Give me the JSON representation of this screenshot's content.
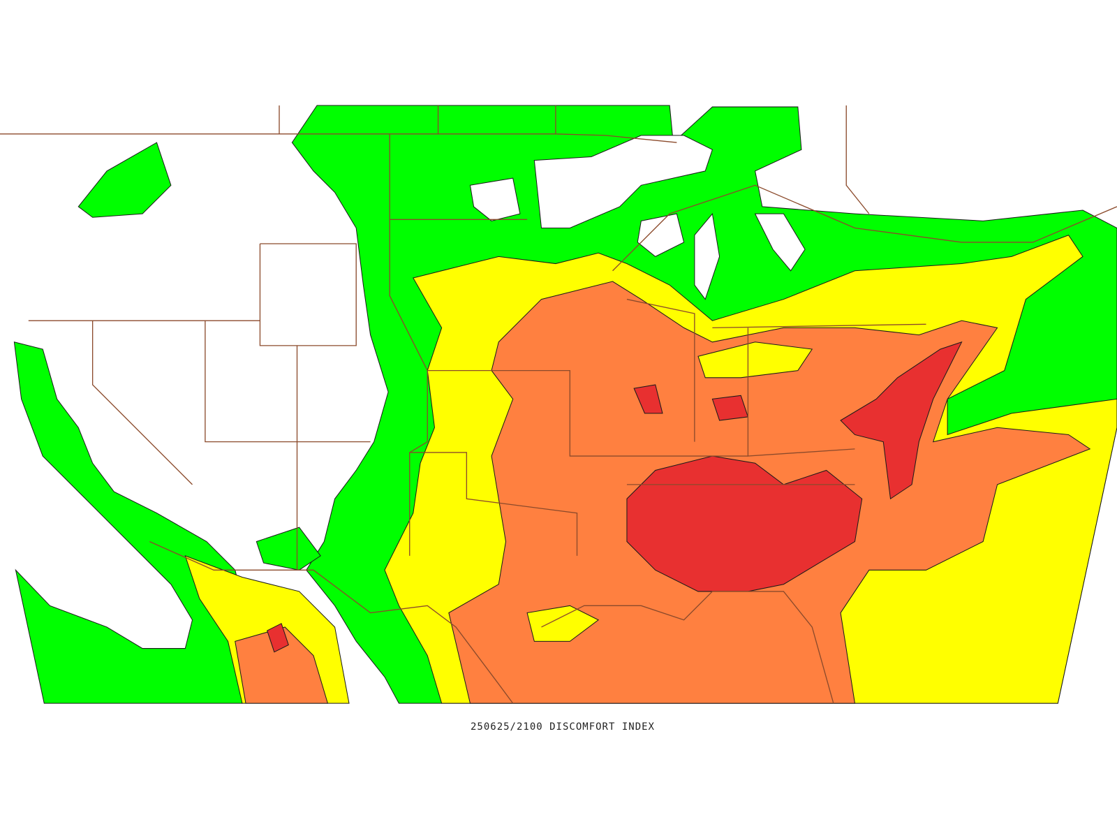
{
  "caption": "250625/2100 DISCOMFORT INDEX"
}
